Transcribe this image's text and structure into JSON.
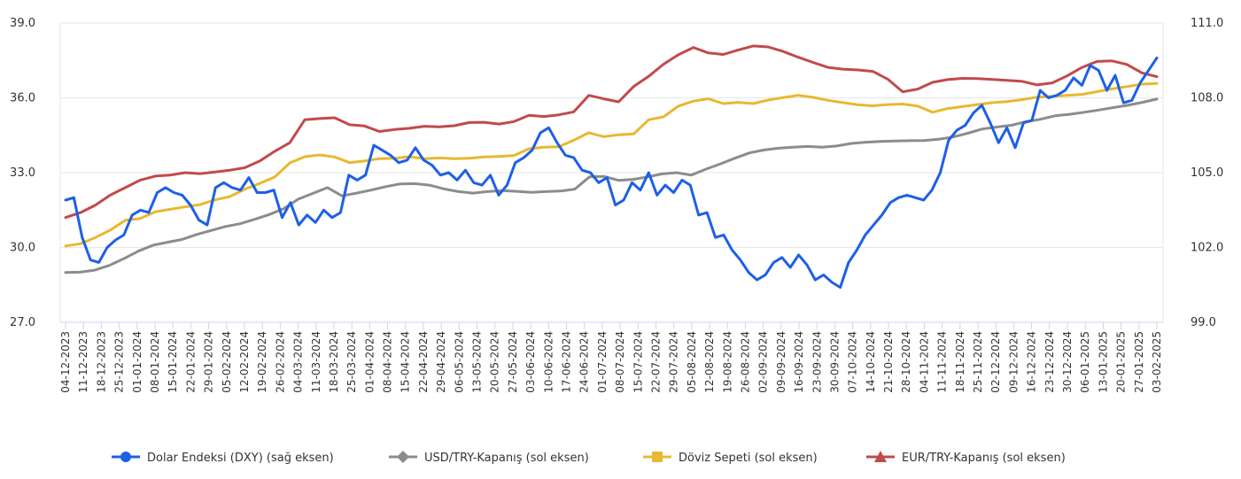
{
  "chart_data": {
    "type": "line",
    "left_axis": {
      "min": 27.0,
      "max": 39.0,
      "ticks": [
        "27.0",
        "30.0",
        "33.0",
        "36.0",
        "39.0"
      ]
    },
    "right_axis": {
      "min": 99.0,
      "max": 111.0,
      "ticks": [
        "99.0",
        "102.0",
        "105.0",
        "108.0",
        "111.0"
      ]
    },
    "grid": true,
    "legend_position": "bottom",
    "x_ticks": [
      "04-12-2023",
      "11-12-2023",
      "18-12-2023",
      "25-12-2023",
      "01-01-2024",
      "08-01-2024",
      "15-01-2024",
      "22-01-2024",
      "29-01-2024",
      "05-02-2024",
      "12-02-2024",
      "19-02-2024",
      "26-02-2024",
      "04-03-2024",
      "11-03-2024",
      "18-03-2024",
      "25-03-2024",
      "01-04-2024",
      "08-04-2024",
      "15-04-2024",
      "22-04-2024",
      "29-04-2024",
      "06-05-2024",
      "13-05-2024",
      "20-05-2024",
      "27-05-2024",
      "03-06-2024",
      "10-06-2024",
      "17-06-2024",
      "24-06-2024",
      "01-07-2024",
      "08-07-2024",
      "15-07-2024",
      "22-07-2024",
      "29-07-2024",
      "05-08-2024",
      "12-08-2024",
      "19-08-2024",
      "26-08-2024",
      "02-09-2024",
      "09-09-2024",
      "16-09-2024",
      "23-09-2024",
      "30-09-2024",
      "07-10-2024",
      "14-10-2024",
      "21-10-2024",
      "28-10-2024",
      "04-11-2024",
      "11-11-2024",
      "18-11-2024",
      "25-11-2024",
      "02-12-2024",
      "09-12-2024",
      "16-12-2024",
      "23-12-2024",
      "30-12-2024",
      "06-01-2025",
      "13-01-2025",
      "20-01-2025",
      "27-01-2025",
      "03-02-2025"
    ],
    "series": [
      {
        "name": "Dolar Endeksi (DXY) (sağ eksen)",
        "axis": "right",
        "color": "#1d5fe8",
        "marker": "circle",
        "values": [
          103.9,
          104.0,
          102.4,
          101.5,
          101.4,
          102.0,
          102.3,
          102.5,
          103.3,
          103.5,
          103.4,
          104.2,
          104.4,
          104.2,
          104.1,
          103.7,
          103.1,
          102.9,
          104.4,
          104.6,
          104.4,
          104.3,
          104.8,
          104.2,
          104.2,
          104.3,
          103.2,
          103.8,
          102.9,
          103.3,
          103.0,
          103.5,
          103.2,
          103.4,
          104.9,
          104.7,
          104.9,
          106.1,
          105.9,
          105.7,
          105.4,
          105.5,
          106.0,
          105.5,
          105.3,
          104.9,
          105.0,
          104.7,
          105.1,
          104.6,
          104.5,
          104.9,
          104.1,
          104.5,
          105.4,
          105.6,
          105.9,
          106.6,
          106.8,
          106.2,
          105.7,
          105.6,
          105.1,
          105.0,
          104.6,
          104.8,
          103.7,
          103.9,
          104.6,
          104.3,
          105.0,
          104.1,
          104.5,
          104.2,
          104.7,
          104.5,
          103.3,
          103.4,
          102.4,
          102.5,
          101.9,
          101.5,
          101.0,
          100.7,
          100.9,
          101.4,
          101.6,
          101.2,
          101.7,
          101.3,
          100.7,
          100.9,
          100.6,
          100.4,
          101.4,
          101.9,
          102.5,
          102.9,
          103.3,
          103.8,
          104.0,
          104.1,
          104.0,
          103.9,
          104.3,
          105.0,
          106.3,
          106.7,
          106.9,
          107.4,
          107.7,
          107.0,
          106.2,
          106.8,
          106.0,
          107.0,
          107.1,
          108.3,
          108.0,
          108.1,
          108.3,
          108.8,
          108.5,
          109.3,
          109.1,
          108.3,
          108.9,
          107.8,
          107.9,
          108.6,
          109.1,
          109.6
        ]
      },
      {
        "name": "USD/TRY-Kapanış (sol eksen)",
        "axis": "left",
        "color": "#8c8c8c",
        "marker": "diamond",
        "values": [
          29.0,
          29.01,
          29.09,
          29.28,
          29.55,
          29.85,
          30.09,
          30.21,
          30.32,
          30.52,
          30.68,
          30.84,
          30.95,
          31.13,
          31.32,
          31.56,
          31.94,
          32.17,
          32.4,
          32.07,
          32.18,
          32.3,
          32.44,
          32.55,
          32.56,
          32.5,
          32.35,
          32.24,
          32.18,
          32.24,
          32.28,
          32.25,
          32.21,
          32.24,
          32.26,
          32.34,
          32.83,
          32.85,
          32.69,
          32.73,
          32.83,
          32.95,
          33.0,
          32.9,
          33.14,
          33.35,
          33.58,
          33.79,
          33.91,
          33.98,
          34.02,
          34.05,
          34.02,
          34.07,
          34.17,
          34.22,
          34.25,
          34.27,
          34.28,
          34.29,
          34.34,
          34.43,
          34.58,
          34.75,
          34.83,
          34.9,
          35.04,
          35.14,
          35.28,
          35.34,
          35.42,
          35.51,
          35.61,
          35.7,
          35.82,
          35.95
        ]
      },
      {
        "name": "Döviz Sepeti (sol eksen)",
        "axis": "left",
        "color": "#e8b830",
        "marker": "square",
        "values": [
          30.06,
          30.15,
          30.4,
          30.7,
          31.09,
          31.16,
          31.43,
          31.53,
          31.63,
          31.72,
          31.91,
          32.04,
          32.34,
          32.57,
          32.83,
          33.39,
          33.64,
          33.71,
          33.63,
          33.4,
          33.47,
          33.56,
          33.58,
          33.64,
          33.56,
          33.59,
          33.56,
          33.58,
          33.63,
          33.65,
          33.69,
          33.96,
          34.02,
          34.04,
          34.3,
          34.6,
          34.44,
          34.52,
          34.55,
          35.12,
          35.24,
          35.67,
          35.87,
          35.96,
          35.77,
          35.82,
          35.77,
          35.91,
          36.01,
          36.1,
          36.02,
          35.9,
          35.81,
          35.72,
          35.68,
          35.73,
          35.75,
          35.67,
          35.42,
          35.57,
          35.65,
          35.73,
          35.81,
          35.85,
          35.93,
          36.03,
          36.06,
          36.1,
          36.14,
          36.25,
          36.36,
          36.45,
          36.55,
          36.58
        ]
      },
      {
        "name": "EUR/TRY-Kapanış (sol eksen)",
        "axis": "left",
        "color": "#c24a4a",
        "marker": "triangle",
        "values": [
          31.2,
          31.4,
          31.7,
          32.1,
          32.4,
          32.7,
          32.86,
          32.9,
          33.0,
          32.96,
          33.03,
          33.1,
          33.2,
          33.47,
          33.86,
          34.2,
          35.12,
          35.17,
          35.2,
          34.92,
          34.87,
          34.65,
          34.73,
          34.78,
          34.86,
          34.84,
          34.88,
          35.01,
          35.02,
          34.95,
          35.05,
          35.3,
          35.25,
          35.32,
          35.44,
          36.1,
          35.96,
          35.84,
          36.45,
          36.86,
          37.35,
          37.73,
          38.02,
          37.8,
          37.74,
          37.92,
          38.08,
          38.04,
          37.86,
          37.63,
          37.42,
          37.22,
          37.15,
          37.12,
          37.06,
          36.75,
          36.24,
          36.35,
          36.62,
          36.73,
          36.78,
          36.77,
          36.74,
          36.7,
          36.66,
          36.52,
          36.6,
          36.88,
          37.22,
          37.46,
          37.48,
          37.34,
          37.0,
          36.85
        ]
      }
    ]
  }
}
